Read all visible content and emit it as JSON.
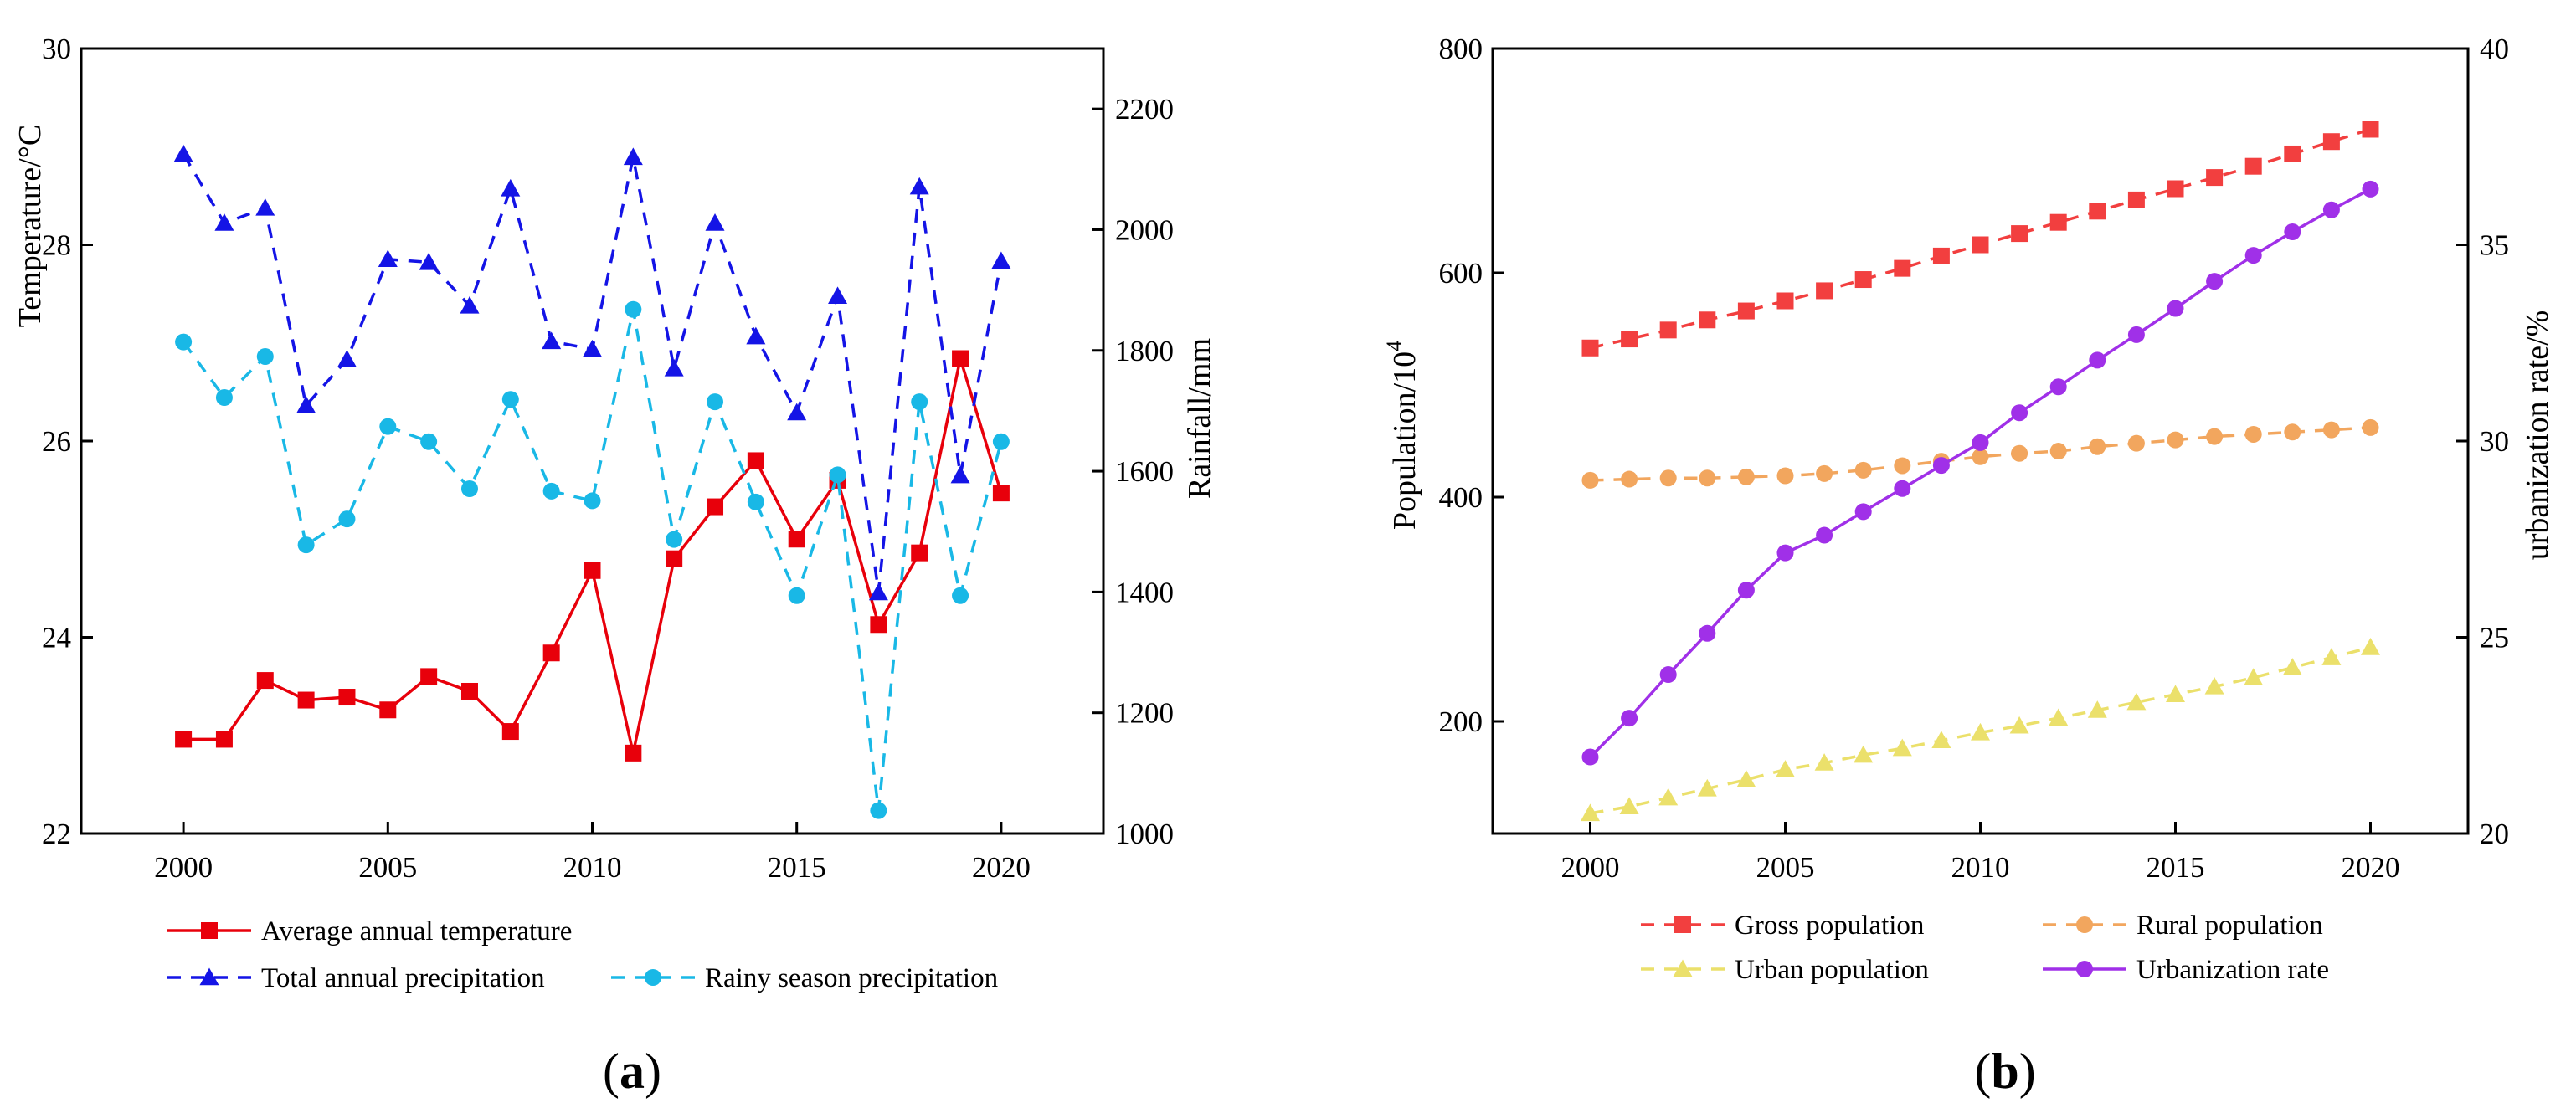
{
  "chart_data": [
    {
      "panel_label_prefix": "(",
      "panel_label_letter": "a",
      "panel_label_suffix": ")",
      "type": "line",
      "x": [
        2000,
        2001,
        2002,
        2003,
        2004,
        2005,
        2006,
        2007,
        2008,
        2009,
        2010,
        2011,
        2012,
        2013,
        2014,
        2015,
        2016,
        2017,
        2018,
        2019,
        2020
      ],
      "xlim": [
        1997.5,
        2022.5
      ],
      "xticks": [
        2000,
        2005,
        2010,
        2015,
        2020
      ],
      "ylabel_left": "Temperature/°C",
      "ylim_left": [
        22,
        30
      ],
      "yticks_left": [
        22,
        24,
        26,
        28,
        30
      ],
      "ylabel_right": "Rainfall/mm",
      "ylim_right": [
        1000,
        2300
      ],
      "yticks_right": [
        1000,
        1200,
        1400,
        1600,
        1800,
        2000,
        2200
      ],
      "series": [
        {
          "name": "Average annual temperature",
          "axis": "left",
          "color": "#e8000b",
          "marker": "square",
          "dash": false,
          "values": [
            22.96,
            22.96,
            23.56,
            23.36,
            23.39,
            23.26,
            23.6,
            23.45,
            23.04,
            23.84,
            24.68,
            22.82,
            24.8,
            25.33,
            25.8,
            25.0,
            25.6,
            24.13,
            24.86,
            26.84,
            25.47
          ]
        },
        {
          "name": "Total annual precipitation",
          "axis": "right",
          "color": "#1414e6",
          "marker": "triangle",
          "dash": true,
          "values": [
            2125,
            2011,
            2036,
            1709,
            1785,
            1951,
            1946,
            1874,
            2068,
            1815,
            1802,
            2120,
            1770,
            2011,
            1823,
            1697,
            1890,
            1399,
            2071,
            1593,
            1948
          ]
        },
        {
          "name": "Rainy season precipitation",
          "axis": "right",
          "color": "#19b8e6",
          "marker": "circle",
          "dash": true,
          "values": [
            1814,
            1722,
            1790,
            1478,
            1521,
            1674,
            1649,
            1571,
            1719,
            1567,
            1551,
            1868,
            1487,
            1715,
            1549,
            1394,
            1594,
            1038,
            1715,
            1394,
            1649
          ]
        }
      ]
    },
    {
      "panel_label_prefix": "(",
      "panel_label_letter": "b",
      "panel_label_suffix": ")",
      "type": "line",
      "x": [
        2000,
        2001,
        2002,
        2003,
        2004,
        2005,
        2006,
        2007,
        2008,
        2009,
        2010,
        2011,
        2012,
        2013,
        2014,
        2015,
        2016,
        2017,
        2018,
        2019,
        2020
      ],
      "xlim": [
        1997.5,
        2022.5
      ],
      "xticks": [
        2000,
        2005,
        2010,
        2015,
        2020
      ],
      "ylabel_left": "Population/10",
      "ylabel_left_sup": "4",
      "ylim_left": [
        100,
        800
      ],
      "yticks_left": [
        200,
        400,
        600,
        800
      ],
      "ylabel_right": "urbanization rate/%",
      "ylim_right": [
        20,
        40
      ],
      "yticks_right": [
        20,
        25,
        30,
        35,
        40
      ],
      "series": [
        {
          "name": "Gross population",
          "axis": "left",
          "color": "#f23f3f",
          "marker": "square",
          "dash": true,
          "values": [
            533,
            541,
            549,
            558,
            566,
            575,
            584,
            594,
            604,
            615,
            625,
            635,
            645,
            655,
            665,
            675,
            685,
            695,
            706,
            717,
            728
          ]
        },
        {
          "name": "Rural population",
          "axis": "left",
          "color": "#f2a65e",
          "marker": "circle",
          "dash": true,
          "values": [
            415,
            416,
            417,
            417,
            418,
            419,
            421,
            424,
            428,
            432,
            436,
            439,
            441,
            445,
            448,
            451,
            454,
            456,
            458,
            460,
            462
          ]
        },
        {
          "name": "Urban population",
          "axis": "left",
          "color": "#ebe06b",
          "marker": "triangle",
          "dash": true,
          "values": [
            118,
            124,
            132,
            140,
            148,
            157,
            163,
            170,
            176,
            183,
            190,
            196,
            203,
            210,
            217,
            224,
            231,
            239,
            248,
            257,
            266
          ]
        },
        {
          "name": "Urbanization rate",
          "axis": "right",
          "color": "#a030e8",
          "marker": "circle",
          "dash": false,
          "values": [
            21.95,
            22.94,
            24.05,
            25.1,
            26.2,
            27.15,
            27.6,
            28.2,
            28.79,
            29.38,
            29.96,
            30.72,
            31.38,
            32.06,
            32.71,
            33.38,
            34.07,
            34.73,
            35.33,
            35.89,
            36.42
          ]
        }
      ]
    }
  ]
}
